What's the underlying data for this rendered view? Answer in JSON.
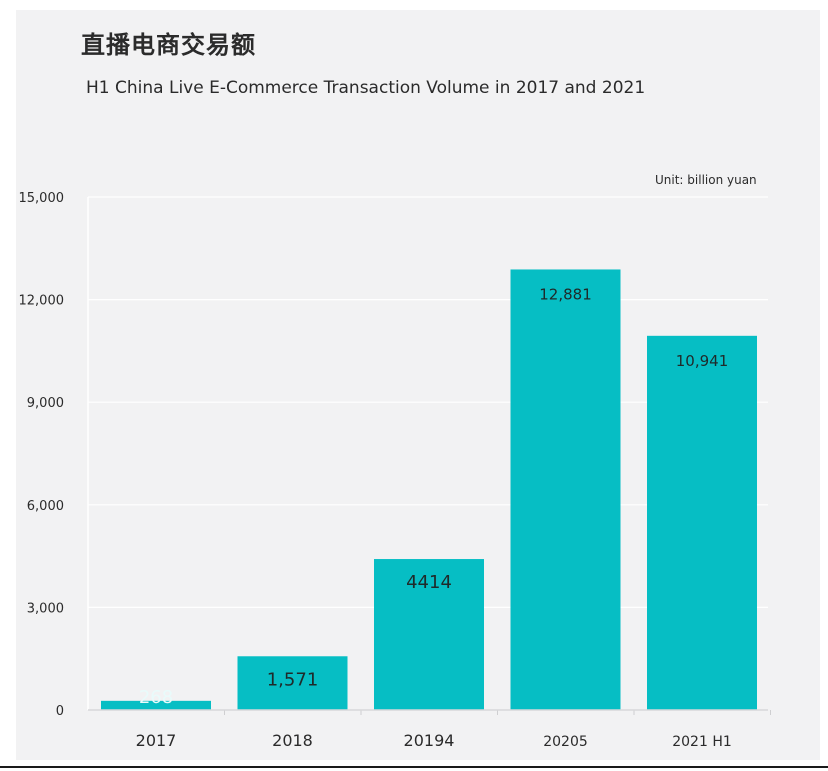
{
  "header": {
    "title": "直播电商交易额",
    "subtitle": "H1 China Live E-Commerce Transaction Volume in 2017 and 2021",
    "unit": "Unit: billion yuan"
  },
  "colors": {
    "bar": "#06bec4",
    "background": "#f2f2f3",
    "grid": "#ffffff",
    "text": "#2b2b2b"
  },
  "chart_data": {
    "type": "bar",
    "title": "H1 China Live E-Commerce Transaction Volume in 2017 and 2021",
    "unit": "Unit: billion yuan",
    "categories": [
      "2017",
      "2018",
      "20194",
      "20205",
      "2021 H1"
    ],
    "values": [
      268,
      1571,
      4414,
      12881,
      10941
    ],
    "data_labels": [
      "268",
      "1,571",
      "4414",
      "12,881",
      "10,941"
    ],
    "ylim": [
      0,
      15000
    ],
    "yticks": [
      0,
      3000,
      6000,
      9000,
      12000,
      15000
    ],
    "ytick_labels": [
      "0",
      "3,000",
      "6,000",
      "9,000",
      "12,000",
      "15,000"
    ],
    "grid": true,
    "legend": "none"
  }
}
